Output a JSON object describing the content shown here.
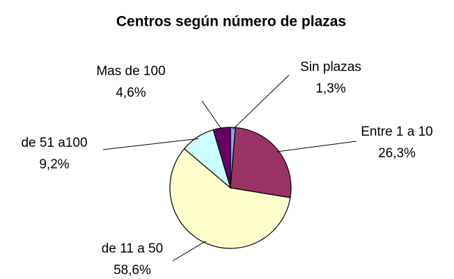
{
  "chart_data": {
    "type": "pie",
    "title": "Centros según número de plazas",
    "categories": [
      "Sin plazas",
      "Entre 1 a 10",
      "de 11 a 50",
      "de 51 a100",
      "Mas de 100"
    ],
    "values": [
      1.3,
      26.3,
      58.6,
      9.2,
      4.6
    ],
    "value_labels": [
      "1,3%",
      "26,3%",
      "58,6%",
      "9,2%",
      "4,6%"
    ],
    "colors": [
      "#9999ff",
      "#993366",
      "#ffffcc",
      "#ccffff",
      "#660066"
    ]
  }
}
